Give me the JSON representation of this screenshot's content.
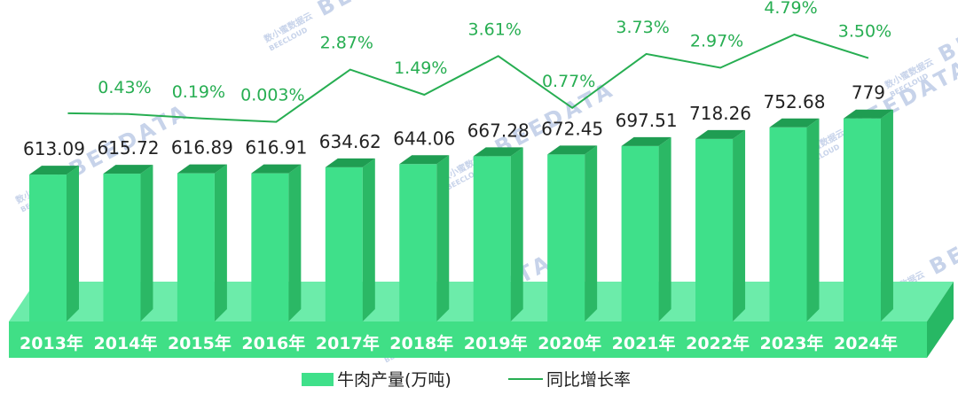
{
  "chart_data": {
    "type": "bar",
    "categories": [
      "2013年",
      "2014年",
      "2015年",
      "2016年",
      "2017年",
      "2018年",
      "2019年",
      "2020年",
      "2021年",
      "2022年",
      "2023年",
      "2024年"
    ],
    "series": [
      {
        "name": "牛肉产量(万吨)",
        "type": "bar",
        "values": [
          613.09,
          615.72,
          616.89,
          616.91,
          634.62,
          644.06,
          667.28,
          672.45,
          697.51,
          718.26,
          752.68,
          779
        ],
        "labels": [
          "613.09",
          "615.72",
          "616.89",
          "616.91",
          "634.62",
          "644.06",
          "667.28",
          "672.45",
          "697.51",
          "718.26",
          "752.68",
          "779"
        ]
      },
      {
        "name": "同比增长率",
        "type": "line",
        "values": [
          null,
          0.43,
          0.19,
          0.003,
          2.87,
          1.49,
          3.61,
          0.77,
          3.73,
          2.97,
          4.79,
          3.5
        ],
        "labels": [
          "",
          "0.43%",
          "0.19%",
          "0.003%",
          "2.87%",
          "1.49%",
          "3.61%",
          "0.77%",
          "3.73%",
          "2.97%",
          "4.79%",
          "3.50%"
        ]
      }
    ],
    "legend_position": "bottom-center",
    "grid": false
  },
  "legend": {
    "bar_label": "牛肉产量(万吨)",
    "line_label": "同比增长率"
  },
  "watermark": {
    "brand": "BEEDATA",
    "logo_text": "数小蜜数据云",
    "logo_subtext": "BEECLOUD"
  },
  "colors": {
    "bar_front": "#3fe08a",
    "bar_side": "#2bb865",
    "bar_top": "#1f9d52",
    "base_front": "#40df86",
    "base_top": "#6cecaa",
    "base_side": "#27b864",
    "line": "#27ae52"
  }
}
